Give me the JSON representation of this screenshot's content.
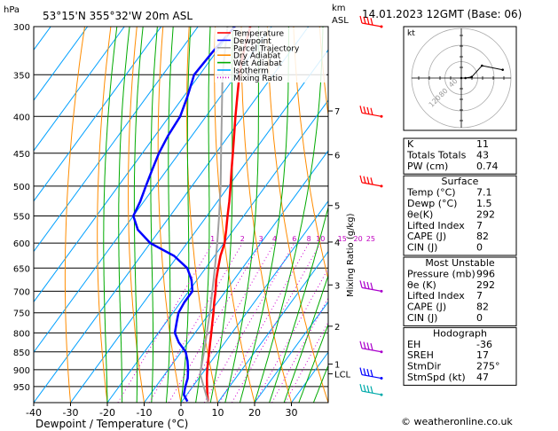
{
  "header": {
    "units_label": "hPa",
    "location": "53°15'N  355°32'W  20m  ASL",
    "km_label": "km",
    "asl_label": "ASL",
    "datetime": "14.01.2023  12GMT  (Base: 06)"
  },
  "legend": {
    "items": [
      {
        "label": "Temperature",
        "color": "#ff0000",
        "style": "solid"
      },
      {
        "label": "Dewpoint",
        "color": "#0000ff",
        "style": "solid"
      },
      {
        "label": "Parcel Trajectory",
        "color": "#a0a0a0",
        "style": "solid"
      },
      {
        "label": "Dry Adiabat",
        "color": "#ff8c00",
        "style": "solid"
      },
      {
        "label": "Wet Adiabat",
        "color": "#00aa00",
        "style": "solid"
      },
      {
        "label": "Isotherm",
        "color": "#00a0ff",
        "style": "solid"
      },
      {
        "label": "Mixing Ratio",
        "color": "#d000d0",
        "style": "dotted"
      }
    ]
  },
  "chart_data": {
    "type": "line",
    "chart_kind": "skew-T log-P sounding",
    "xlabel": "Dewpoint / Temperature (°C)",
    "ylabel_left": "hPa",
    "ylabel_right": "Mixing Ratio (g/kg)",
    "x_ticks": [
      -40,
      -30,
      -20,
      -10,
      0,
      10,
      20,
      30
    ],
    "xlim": [
      -40,
      40
    ],
    "y_ticks": [
      300,
      350,
      400,
      450,
      500,
      550,
      600,
      650,
      700,
      750,
      800,
      850,
      900,
      950
    ],
    "ylim": [
      300,
      1000
    ],
    "y_scale": "log",
    "km_ticks": [
      {
        "label": "7",
        "p": 393
      },
      {
        "label": "6",
        "p": 452
      },
      {
        "label": "5",
        "p": 532
      },
      {
        "label": "4",
        "p": 598
      },
      {
        "label": "3",
        "p": 686
      },
      {
        "label": "2",
        "p": 783
      },
      {
        "label": "1",
        "p": 884
      },
      {
        "label": "LCL",
        "p": 912
      }
    ],
    "mixing_ratio_labels": [
      "1",
      "2",
      "3",
      "4",
      "6",
      "8",
      "10",
      "15",
      "20",
      "25"
    ],
    "mixing_ratio_values": [
      1,
      2,
      3,
      4,
      6,
      8,
      10,
      15,
      20,
      25
    ],
    "mixing_ratio_label_p": 600,
    "series": [
      {
        "name": "Temperature",
        "color": "#ff0000",
        "p": [
          996,
          975,
          950,
          925,
          900,
          875,
          850,
          825,
          800,
          775,
          750,
          725,
          700,
          675,
          650,
          625,
          600,
          575,
          550,
          525,
          500,
          475,
          450,
          425,
          400,
          375,
          350,
          325,
          300
        ],
        "t": [
          7.1,
          5.6,
          3.9,
          2.2,
          0.6,
          -0.9,
          -2.4,
          -4.0,
          -5.6,
          -7.3,
          -9.0,
          -10.9,
          -12.7,
          -14.8,
          -16.6,
          -18.4,
          -19.8,
          -22.0,
          -24.4,
          -26.8,
          -29.5,
          -32.4,
          -35.4,
          -38.6,
          -42.0,
          -45.5,
          -49.2,
          -52.6,
          -55.8
        ]
      },
      {
        "name": "Dewpoint",
        "color": "#0000ff",
        "p": [
          996,
          975,
          950,
          925,
          900,
          875,
          850,
          825,
          800,
          775,
          750,
          725,
          700,
          675,
          650,
          625,
          600,
          575,
          550,
          525,
          500,
          475,
          450,
          425,
          400,
          375,
          350,
          325,
          300
        ],
        "t": [
          1.5,
          -0.8,
          -2.0,
          -3.0,
          -4.6,
          -6.5,
          -8.8,
          -12.5,
          -15.5,
          -17.0,
          -18.5,
          -19.0,
          -19.0,
          -21.5,
          -25.0,
          -31.0,
          -40.0,
          -46.0,
          -50.0,
          -51.0,
          -52.5,
          -54.0,
          -55.5,
          -56.5,
          -57.0,
          -59.0,
          -61.5,
          -61.0,
          -60.0
        ]
      },
      {
        "name": "Parcel Trajectory",
        "color": "#a0a0a0",
        "p": [
          996,
          950,
          912,
          850,
          800,
          750,
          700,
          650,
          600,
          550,
          500,
          450,
          400,
          350,
          300
        ],
        "t": [
          7.1,
          3.0,
          -0.5,
          -3.8,
          -6.8,
          -10.0,
          -13.6,
          -17.5,
          -21.8,
          -26.7,
          -32.2,
          -38.6,
          -45.7,
          -53.8,
          -62.0
        ]
      }
    ],
    "wind_barbs": [
      {
        "p": 300,
        "color": "#ff0000"
      },
      {
        "p": 400,
        "color": "#ff0000"
      },
      {
        "p": 500,
        "color": "#ff0000"
      },
      {
        "p": 700,
        "color": "#aa00cc"
      },
      {
        "p": 850,
        "color": "#aa00cc"
      },
      {
        "p": 925,
        "color": "#0000ff"
      },
      {
        "p": 975,
        "color": "#00aaaa"
      }
    ]
  },
  "hodograph": {
    "label": "kt",
    "ring_labels": [
      "40",
      "80",
      "120"
    ],
    "trace": [
      [
        0,
        0
      ],
      [
        4,
        0
      ],
      [
        10,
        1
      ],
      [
        20,
        12
      ],
      [
        40,
        8
      ]
    ],
    "max_kt": 48
  },
  "indices": {
    "top": [
      {
        "label": "K",
        "value": "11"
      },
      {
        "label": "Totals Totals",
        "value": "43"
      },
      {
        "label": "PW (cm)",
        "value": "0.74"
      }
    ],
    "surface": {
      "title": "Surface",
      "rows": [
        {
          "label": "Temp (°C)",
          "value": "7.1"
        },
        {
          "label": "Dewp (°C)",
          "value": "1.5"
        },
        {
          "label": "θe(K)",
          "value": "292"
        },
        {
          "label": "Lifted Index",
          "value": "7"
        },
        {
          "label": "CAPE (J)",
          "value": "82"
        },
        {
          "label": "CIN (J)",
          "value": "0"
        }
      ]
    },
    "most_unstable": {
      "title": "Most Unstable",
      "rows": [
        {
          "label": "Pressure (mb)",
          "value": "996"
        },
        {
          "label": "θe (K)",
          "value": "292"
        },
        {
          "label": "Lifted Index",
          "value": "7"
        },
        {
          "label": "CAPE (J)",
          "value": "82"
        },
        {
          "label": "CIN (J)",
          "value": "0"
        }
      ]
    },
    "hodograph_block": {
      "title": "Hodograph",
      "rows": [
        {
          "label": "EH",
          "value": "-36"
        },
        {
          "label": "SREH",
          "value": "17"
        },
        {
          "label": "StmDir",
          "value": "275°"
        },
        {
          "label": "StmSpd (kt)",
          "value": "47"
        }
      ]
    }
  },
  "copyright": "© weatheronline.co.uk"
}
